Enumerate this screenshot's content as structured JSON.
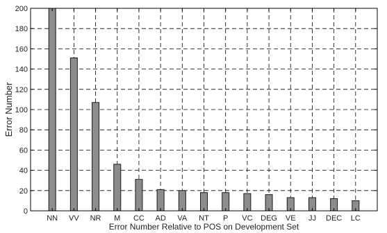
{
  "chart_data": {
    "type": "bar",
    "title": "",
    "xlabel": "Error Number Relative to POS on Development Set",
    "ylabel": "Error Number",
    "categories": [
      "NN",
      "VV",
      "NR",
      "M",
      "CC",
      "AD",
      "VA",
      "NT",
      "P",
      "VC",
      "DEG",
      "VE",
      "JJ",
      "DEC",
      "LC"
    ],
    "values": [
      200,
      151,
      107,
      46,
      31,
      21,
      20,
      18,
      18,
      17,
      16,
      13,
      13,
      12,
      10
    ],
    "ylim": [
      0,
      200
    ],
    "yticks": [
      0,
      20,
      40,
      60,
      80,
      100,
      120,
      140,
      160,
      180,
      200
    ],
    "grid": true,
    "grid_style": "dashed",
    "legend": "none",
    "bar_color": "#8c8c8c",
    "bar_edge_color": "#1a1a1a"
  }
}
